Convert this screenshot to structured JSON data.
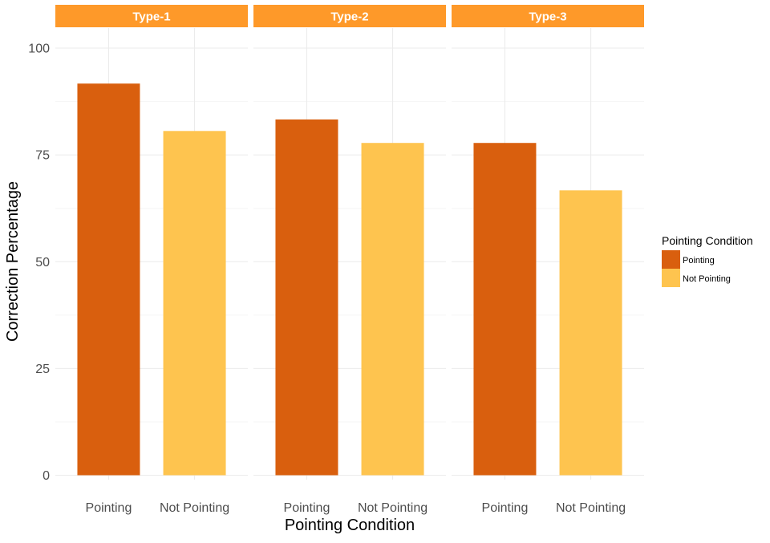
{
  "chart_data": {
    "type": "bar",
    "facets": [
      "Type-1",
      "Type-2",
      "Type-3"
    ],
    "categories": [
      "Pointing",
      "Not Pointing"
    ],
    "values": [
      [
        91.7,
        80.6
      ],
      [
        83.3,
        77.8
      ],
      [
        77.8,
        66.7
      ]
    ],
    "xlabel": "Pointing Condition",
    "ylabel": "Correction Percentage",
    "ylim": [
      0,
      100
    ],
    "yticks": [
      0,
      25,
      50,
      75,
      100
    ],
    "grid": true,
    "legend": {
      "title": "Pointing Condition",
      "position": "right",
      "entries": [
        "Pointing",
        "Not Pointing"
      ]
    },
    "colors": {
      "Pointing": "#d95f0e",
      "Not Pointing": "#fec44f",
      "strip_fill": "#fe9929",
      "strip_text": "#ffffff",
      "grid_major": "#ebebeb",
      "grid_minor": "#f5f5f5",
      "axis_text": "#4d4d4d",
      "title_text": "#000000"
    }
  }
}
